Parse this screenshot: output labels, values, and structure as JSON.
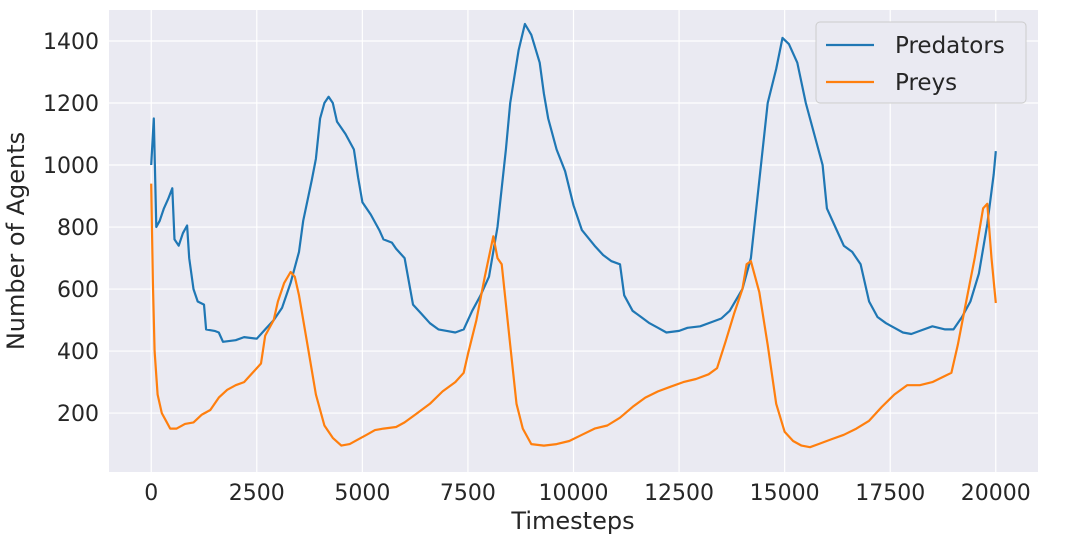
{
  "chart_data": {
    "type": "line",
    "title": "",
    "xlabel": "Timesteps",
    "ylabel": "Number of Agents",
    "xlim": [
      -1000,
      21000
    ],
    "ylim": [
      10,
      1500
    ],
    "xticks": [
      0,
      2500,
      5000,
      7500,
      10000,
      12500,
      15000,
      17500,
      20000
    ],
    "yticks": [
      200,
      400,
      600,
      800,
      1000,
      1200,
      1400
    ],
    "grid": true,
    "legend_position": "top-right",
    "series": [
      {
        "name": "Predators",
        "color": "#1f77b4",
        "points": [
          [
            0,
            1000
          ],
          [
            60,
            1150
          ],
          [
            120,
            800
          ],
          [
            200,
            820
          ],
          [
            300,
            860
          ],
          [
            400,
            890
          ],
          [
            500,
            925
          ],
          [
            550,
            760
          ],
          [
            650,
            740
          ],
          [
            750,
            780
          ],
          [
            850,
            805
          ],
          [
            900,
            700
          ],
          [
            1000,
            600
          ],
          [
            1100,
            560
          ],
          [
            1250,
            550
          ],
          [
            1300,
            470
          ],
          [
            1500,
            465
          ],
          [
            1600,
            460
          ],
          [
            1700,
            430
          ],
          [
            2000,
            435
          ],
          [
            2200,
            445
          ],
          [
            2500,
            440
          ],
          [
            2700,
            470
          ],
          [
            2900,
            500
          ],
          [
            3100,
            540
          ],
          [
            3300,
            620
          ],
          [
            3500,
            720
          ],
          [
            3600,
            820
          ],
          [
            3800,
            950
          ],
          [
            3900,
            1020
          ],
          [
            4000,
            1150
          ],
          [
            4100,
            1200
          ],
          [
            4200,
            1220
          ],
          [
            4300,
            1200
          ],
          [
            4400,
            1140
          ],
          [
            4600,
            1100
          ],
          [
            4800,
            1050
          ],
          [
            4900,
            960
          ],
          [
            5000,
            880
          ],
          [
            5200,
            840
          ],
          [
            5400,
            790
          ],
          [
            5500,
            760
          ],
          [
            5700,
            750
          ],
          [
            5800,
            730
          ],
          [
            6000,
            700
          ],
          [
            6200,
            550
          ],
          [
            6400,
            520
          ],
          [
            6600,
            490
          ],
          [
            6800,
            470
          ],
          [
            7000,
            465
          ],
          [
            7200,
            460
          ],
          [
            7400,
            470
          ],
          [
            7600,
            530
          ],
          [
            7800,
            580
          ],
          [
            8000,
            640
          ],
          [
            8200,
            800
          ],
          [
            8400,
            1050
          ],
          [
            8500,
            1200
          ],
          [
            8700,
            1370
          ],
          [
            8850,
            1455
          ],
          [
            9000,
            1420
          ],
          [
            9200,
            1330
          ],
          [
            9300,
            1230
          ],
          [
            9400,
            1150
          ],
          [
            9600,
            1050
          ],
          [
            9800,
            980
          ],
          [
            10000,
            870
          ],
          [
            10200,
            790
          ],
          [
            10500,
            740
          ],
          [
            10700,
            710
          ],
          [
            10900,
            690
          ],
          [
            11100,
            680
          ],
          [
            11200,
            580
          ],
          [
            11400,
            530
          ],
          [
            11600,
            510
          ],
          [
            11800,
            490
          ],
          [
            12000,
            475
          ],
          [
            12200,
            460
          ],
          [
            12500,
            465
          ],
          [
            12700,
            475
          ],
          [
            13000,
            480
          ],
          [
            13300,
            495
          ],
          [
            13500,
            505
          ],
          [
            13700,
            530
          ],
          [
            14000,
            600
          ],
          [
            14200,
            700
          ],
          [
            14400,
            950
          ],
          [
            14600,
            1200
          ],
          [
            14800,
            1310
          ],
          [
            14950,
            1410
          ],
          [
            15100,
            1390
          ],
          [
            15300,
            1330
          ],
          [
            15500,
            1200
          ],
          [
            15700,
            1100
          ],
          [
            15900,
            1000
          ],
          [
            16000,
            860
          ],
          [
            16200,
            800
          ],
          [
            16400,
            740
          ],
          [
            16600,
            720
          ],
          [
            16800,
            680
          ],
          [
            17000,
            560
          ],
          [
            17200,
            510
          ],
          [
            17400,
            490
          ],
          [
            17600,
            475
          ],
          [
            17800,
            460
          ],
          [
            18000,
            455
          ],
          [
            18200,
            465
          ],
          [
            18500,
            480
          ],
          [
            18800,
            470
          ],
          [
            19000,
            470
          ],
          [
            19200,
            510
          ],
          [
            19400,
            560
          ],
          [
            19600,
            650
          ],
          [
            19800,
            810
          ],
          [
            19950,
            970
          ],
          [
            20000,
            1045
          ]
        ]
      },
      {
        "name": "Preys",
        "color": "#ff7f0e",
        "points": [
          [
            0,
            940
          ],
          [
            40,
            620
          ],
          [
            80,
            400
          ],
          [
            150,
            260
          ],
          [
            250,
            200
          ],
          [
            350,
            175
          ],
          [
            450,
            150
          ],
          [
            600,
            150
          ],
          [
            800,
            165
          ],
          [
            1000,
            170
          ],
          [
            1200,
            195
          ],
          [
            1400,
            210
          ],
          [
            1600,
            250
          ],
          [
            1800,
            275
          ],
          [
            2000,
            290
          ],
          [
            2200,
            300
          ],
          [
            2400,
            330
          ],
          [
            2600,
            360
          ],
          [
            2700,
            450
          ],
          [
            2900,
            500
          ],
          [
            3000,
            560
          ],
          [
            3150,
            620
          ],
          [
            3300,
            655
          ],
          [
            3400,
            640
          ],
          [
            3500,
            580
          ],
          [
            3700,
            420
          ],
          [
            3900,
            260
          ],
          [
            4100,
            160
          ],
          [
            4300,
            120
          ],
          [
            4500,
            95
          ],
          [
            4700,
            100
          ],
          [
            4900,
            115
          ],
          [
            5100,
            130
          ],
          [
            5300,
            145
          ],
          [
            5500,
            150
          ],
          [
            5800,
            155
          ],
          [
            6000,
            170
          ],
          [
            6300,
            200
          ],
          [
            6600,
            230
          ],
          [
            6900,
            270
          ],
          [
            7200,
            300
          ],
          [
            7400,
            330
          ],
          [
            7500,
            390
          ],
          [
            7700,
            500
          ],
          [
            7900,
            640
          ],
          [
            8100,
            770
          ],
          [
            8200,
            700
          ],
          [
            8300,
            680
          ],
          [
            8500,
            420
          ],
          [
            8650,
            230
          ],
          [
            8800,
            150
          ],
          [
            9000,
            100
          ],
          [
            9300,
            95
          ],
          [
            9600,
            100
          ],
          [
            9900,
            110
          ],
          [
            10200,
            130
          ],
          [
            10500,
            150
          ],
          [
            10800,
            160
          ],
          [
            11100,
            185
          ],
          [
            11400,
            220
          ],
          [
            11700,
            250
          ],
          [
            12000,
            270
          ],
          [
            12300,
            285
          ],
          [
            12600,
            300
          ],
          [
            12900,
            310
          ],
          [
            13200,
            325
          ],
          [
            13400,
            345
          ],
          [
            13600,
            430
          ],
          [
            13800,
            520
          ],
          [
            14000,
            600
          ],
          [
            14100,
            680
          ],
          [
            14200,
            690
          ],
          [
            14400,
            590
          ],
          [
            14600,
            420
          ],
          [
            14800,
            230
          ],
          [
            15000,
            140
          ],
          [
            15200,
            110
          ],
          [
            15400,
            95
          ],
          [
            15600,
            90
          ],
          [
            15800,
            100
          ],
          [
            16100,
            115
          ],
          [
            16400,
            130
          ],
          [
            16700,
            150
          ],
          [
            17000,
            175
          ],
          [
            17300,
            220
          ],
          [
            17600,
            260
          ],
          [
            17900,
            290
          ],
          [
            18200,
            290
          ],
          [
            18500,
            300
          ],
          [
            18800,
            320
          ],
          [
            18950,
            330
          ],
          [
            19100,
            420
          ],
          [
            19300,
            560
          ],
          [
            19500,
            700
          ],
          [
            19700,
            860
          ],
          [
            19800,
            875
          ],
          [
            19900,
            700
          ],
          [
            20000,
            555
          ]
        ]
      }
    ]
  }
}
